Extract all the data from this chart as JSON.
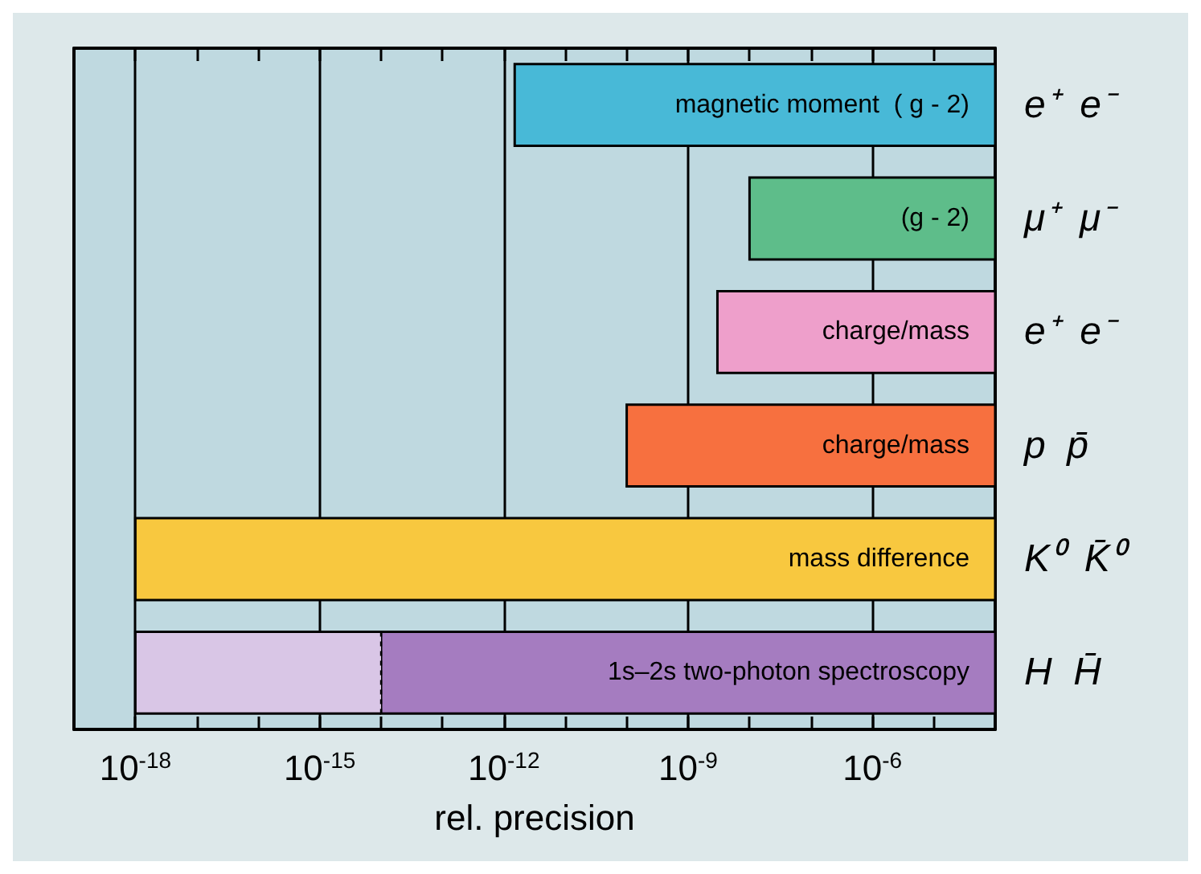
{
  "chart_data": {
    "type": "bar",
    "orientation": "horizontal",
    "log": "x",
    "xlabel": "rel. precision",
    "categories": [
      "e⁺  e⁻",
      "μ⁺  μ⁻",
      "e⁺  e⁻",
      "p  p̄",
      "K⁰  K̄⁰",
      "H  H̄"
    ],
    "series": [
      {
        "colors": [
          "#48b9d7",
          "#5ebd8a",
          "#ee9fcb",
          "#f7703f",
          "#f8c83f",
          "#a57cc0"
        ],
        "base": [
          1.5e-12,
          1e-08,
          3e-09,
          1e-10,
          1e-18,
          1e-14
        ],
        "values": [
          0.0001,
          0.0001,
          0.0001,
          0.0001,
          0.0001,
          0.0001
        ]
      },
      {
        "color": "#d9c6e6",
        "base": [
          null,
          null,
          null,
          null,
          null,
          1e-18
        ],
        "values": [
          null,
          null,
          null,
          null,
          null,
          1e-14
        ],
        "line_style": "dashed"
      }
    ],
    "xlim": [
      1e-19,
      0.0001
    ],
    "xticks": [
      {
        "value": 1e-18,
        "label": "10$^{-18}$"
      },
      {
        "value": 1e-17,
        "label": null
      },
      {
        "value": 1e-16,
        "label": null
      },
      {
        "value": 1e-15,
        "label": "10$^{-15}$"
      },
      {
        "value": 1e-14,
        "label": null
      },
      {
        "value": 1e-13,
        "label": null
      },
      {
        "value": 1e-12,
        "label": "10$^{-12}$"
      },
      {
        "value": 1e-11,
        "label": null
      },
      {
        "value": 1e-10,
        "label": null
      },
      {
        "value": 1e-09,
        "label": "10$^{-9}$"
      },
      {
        "value": 1e-08,
        "label": null
      },
      {
        "value": 1e-07,
        "label": null
      },
      {
        "value": 1e-06,
        "label": "10$^{-6}$"
      },
      {
        "value": 1e-05,
        "label": null
      }
    ],
    "annotations": [
      "magnetic moment  ( g - 2)",
      "(g - 2)",
      "charge/mass",
      "charge/mass",
      "mass difference",
      "1s–2s two-photon spectroscopy"
    ],
    "grid": "x"
  }
}
